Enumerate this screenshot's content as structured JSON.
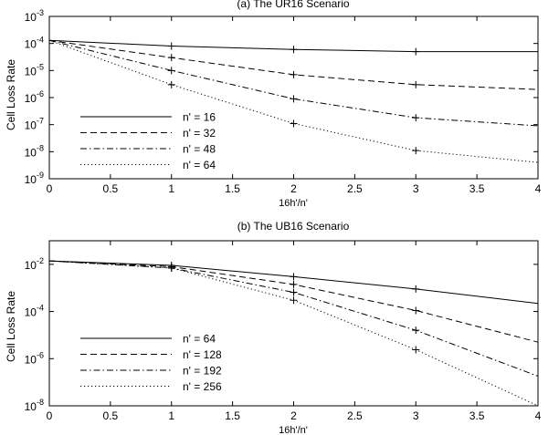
{
  "chart_data": [
    {
      "type": "line",
      "title": "(a) The UR16 Scenario",
      "xlabel": "16h'/n'",
      "ylabel": "Cell Loss Rate",
      "xlim": [
        0,
        4
      ],
      "ylim": [
        1e-09,
        0.001
      ],
      "yscale": "log",
      "xticks": [
        0,
        0.5,
        1,
        1.5,
        2,
        2.5,
        3,
        3.5,
        4
      ],
      "xtick_labels": [
        "0",
        "0.5",
        "1",
        "1.5",
        "2",
        "2.5",
        "3",
        "3.5",
        "4"
      ],
      "yticks": [
        1e-09,
        1e-08,
        1e-07,
        1e-06,
        1e-05,
        0.0001,
        0.001
      ],
      "ytick_exponents": [
        "-9",
        "-8",
        "-7",
        "-6",
        "-5",
        "-4",
        "-3"
      ],
      "grid": false,
      "legend_position": "left",
      "series": [
        {
          "name": "n' = 16",
          "linestyle": "solid",
          "x": [
            0,
            1,
            2,
            3,
            4
          ],
          "values": [
            0.00013,
            8e-05,
            6e-05,
            5e-05,
            5e-05
          ]
        },
        {
          "name": "n' = 32",
          "linestyle": "dashed",
          "x": [
            0,
            1,
            2,
            3,
            4
          ],
          "values": [
            0.00013,
            3e-05,
            7e-06,
            3e-06,
            2e-06
          ]
        },
        {
          "name": "n' = 48",
          "linestyle": "dashdot",
          "x": [
            0,
            1,
            2,
            3,
            4
          ],
          "values": [
            0.00013,
            1e-05,
            9e-07,
            1.8e-07,
            9e-08
          ]
        },
        {
          "name": "n' = 64",
          "linestyle": "dotted",
          "x": [
            0,
            1,
            2,
            3,
            4
          ],
          "values": [
            0.00013,
            3e-06,
            1.1e-07,
            1.1e-08,
            4e-09
          ]
        }
      ]
    },
    {
      "type": "line",
      "title": "(b) The UB16 Scenario",
      "xlabel": "16h'/n'",
      "ylabel": "Cell Loss Rate",
      "xlim": [
        0,
        4
      ],
      "ylim": [
        1e-08,
        0.1
      ],
      "yscale": "log",
      "xticks": [
        0,
        0.5,
        1,
        1.5,
        2,
        2.5,
        3,
        3.5,
        4
      ],
      "xtick_labels": [
        "0",
        "0.5",
        "1",
        "1.5",
        "2",
        "2.5",
        "3",
        "3.5",
        "4"
      ],
      "yticks": [
        1e-08,
        1e-06,
        0.0001,
        0.01
      ],
      "ytick_exponents": [
        "-8",
        "-6",
        "-4",
        "-2"
      ],
      "grid": false,
      "legend_position": "left",
      "series": [
        {
          "name": "n' = 64",
          "linestyle": "solid",
          "x": [
            0,
            1,
            2,
            3,
            4
          ],
          "values": [
            0.014,
            0.009,
            0.003,
            0.0009,
            0.00022
          ]
        },
        {
          "name": "n' = 128",
          "linestyle": "dashed",
          "x": [
            0,
            1,
            2,
            3,
            4
          ],
          "values": [
            0.014,
            0.008,
            0.0014,
            0.00011,
            5e-06
          ]
        },
        {
          "name": "n' = 192",
          "linestyle": "dashdot",
          "x": [
            0,
            1,
            2,
            3,
            4
          ],
          "values": [
            0.014,
            0.007,
            0.00065,
            1.6e-05,
            1.8e-07
          ]
        },
        {
          "name": "n' = 256",
          "linestyle": "dotted",
          "x": [
            0,
            1,
            2,
            3,
            4
          ],
          "values": [
            0.014,
            0.007,
            0.0003,
            2.4e-06,
            1e-08
          ]
        }
      ]
    }
  ]
}
